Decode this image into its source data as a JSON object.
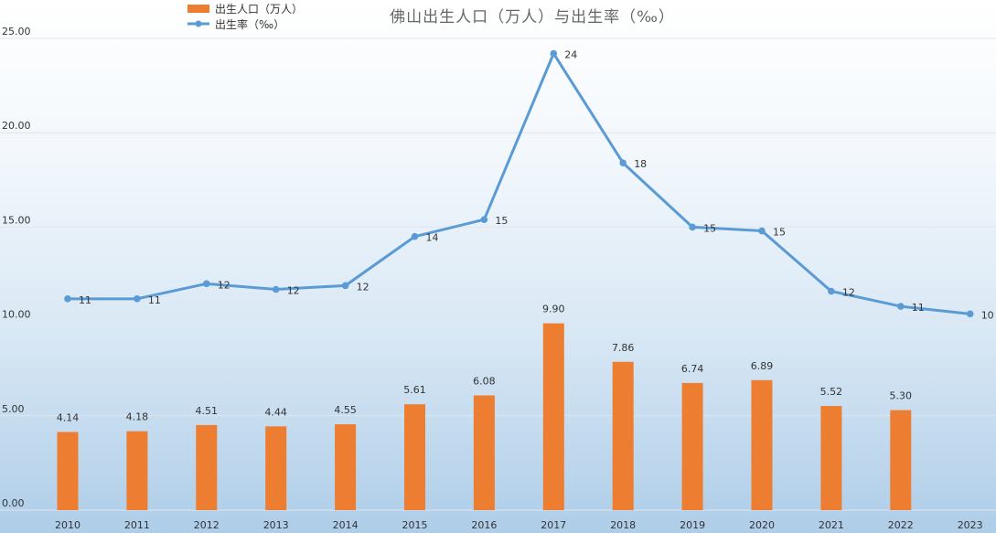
{
  "chart_data": {
    "type": "bar+line",
    "title": "佛山出生人口（万人）与出生率（‰）",
    "categories": [
      "2010",
      "2011",
      "2012",
      "2013",
      "2014",
      "2015",
      "2016",
      "2017",
      "2018",
      "2019",
      "2020",
      "2021",
      "2022",
      "2023"
    ],
    "series": [
      {
        "name": "出生人口（万人）",
        "type": "bar",
        "color": "#ed7d31",
        "values": [
          4.14,
          4.18,
          4.51,
          4.44,
          4.55,
          5.61,
          6.08,
          9.9,
          7.86,
          6.74,
          6.89,
          5.52,
          5.3,
          null
        ],
        "labels": [
          "4.14",
          "4.18",
          "4.51",
          "4.44",
          "4.55",
          "5.61",
          "6.08",
          "9.90",
          "7.86",
          "6.74",
          "6.89",
          "5.52",
          "5.30",
          ""
        ]
      },
      {
        "name": "出生率（‰）",
        "type": "line",
        "color": "#5b9bd5",
        "values": [
          11.2,
          11.2,
          12.0,
          11.7,
          11.9,
          14.5,
          15.4,
          24.2,
          18.4,
          15.0,
          14.8,
          11.6,
          10.8,
          10.4
        ],
        "labels": [
          "11",
          "11",
          "12",
          "12",
          "12",
          "14",
          "15",
          "24",
          "18",
          "15",
          "15",
          "12",
          "11",
          "10"
        ]
      }
    ],
    "ylim": [
      0,
      25
    ],
    "yticks": [
      "0.00",
      "5.00",
      "10.00",
      "15.00",
      "20.00",
      "25.00"
    ],
    "ytick_values": [
      0,
      5,
      10,
      15,
      20,
      25
    ],
    "grid": true,
    "legend_position": "top-left",
    "xlabel": "",
    "ylabel": ""
  }
}
